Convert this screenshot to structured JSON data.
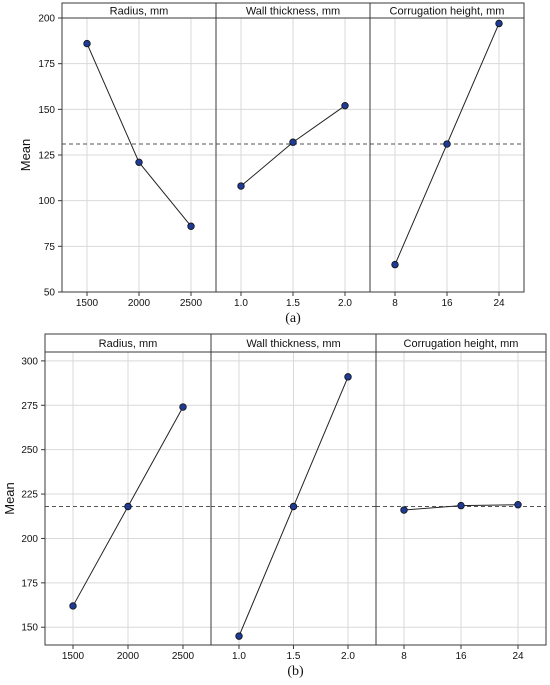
{
  "chart_data": [
    {
      "type": "line",
      "caption": "(a)",
      "ylabel": "Mean",
      "ylim": [
        50,
        200
      ],
      "yticks": [
        50,
        75,
        100,
        125,
        150,
        175,
        200
      ],
      "reference_line": 131,
      "grid": true,
      "point_color": "#1f3a93",
      "panels": [
        {
          "title": "Radius, mm",
          "categories": [
            "1500",
            "2000",
            "2500"
          ],
          "values": [
            186,
            121,
            86
          ]
        },
        {
          "title": "Wall thickness, mm",
          "categories": [
            "1.0",
            "1.5",
            "2.0"
          ],
          "values": [
            108,
            132,
            152
          ]
        },
        {
          "title": "Corrugation height, mm",
          "categories": [
            "8",
            "16",
            "24"
          ],
          "values": [
            65,
            131,
            197
          ]
        }
      ]
    },
    {
      "type": "line",
      "caption": "(b)",
      "ylabel": "Mean",
      "ylim": [
        140,
        305
      ],
      "yticks": [
        150,
        175,
        200,
        225,
        250,
        275,
        300
      ],
      "reference_line": 218,
      "grid": true,
      "point_color": "#1f3a93",
      "panels": [
        {
          "title": "Radius, mm",
          "categories": [
            "1500",
            "2000",
            "2500"
          ],
          "values": [
            162,
            218,
            274
          ]
        },
        {
          "title": "Wall thickness, mm",
          "categories": [
            "1.0",
            "1.5",
            "2.0"
          ],
          "values": [
            145,
            218,
            291
          ]
        },
        {
          "title": "Corrugation height, mm",
          "categories": [
            "8",
            "16",
            "24"
          ],
          "values": [
            216,
            218.5,
            219
          ]
        }
      ]
    }
  ]
}
